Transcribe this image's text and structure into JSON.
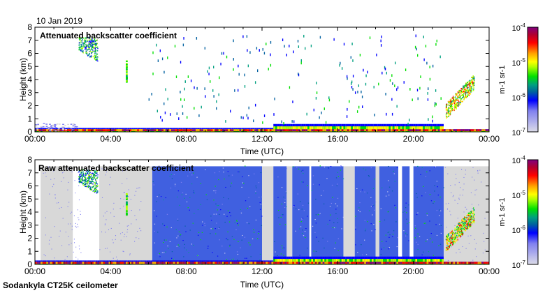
{
  "date_label": "10 Jan 2019",
  "footer_label": "Sodankyla CT25K ceilometer",
  "chart_data": [
    {
      "type": "heatmap",
      "title": "Attenuated backscatter coefficient",
      "xlabel": "Time (UTC)",
      "ylabel": "Height (km)",
      "xlim": [
        0,
        24
      ],
      "ylim": [
        0,
        8
      ],
      "x_ticks": [
        "00:00",
        "04:00",
        "08:00",
        "12:00",
        "16:00",
        "20:00",
        "00:00"
      ],
      "y_ticks": [
        "0",
        "1",
        "2",
        "3",
        "4",
        "5",
        "6",
        "7",
        "8"
      ],
      "colorbar": {
        "label": "m-1 sr-1",
        "ticks": [
          "10-7",
          "10-6",
          "10-5",
          "10-4"
        ],
        "scale": "log",
        "range": [
          1e-07,
          0.0001
        ]
      },
      "features": [
        {
          "name": "surface layer",
          "t": [
            0,
            21.6
          ],
          "h": [
            0,
            0.3
          ]
        },
        {
          "name": "thick boundary layer",
          "t": [
            12.5,
            21.6
          ],
          "h": [
            0,
            0.6
          ]
        },
        {
          "name": "high cloud",
          "t": [
            2.3,
            3.3
          ],
          "h": [
            5.3,
            7.2
          ]
        },
        {
          "name": "cloud streak",
          "t": [
            4.8,
            4.9
          ],
          "h": [
            3.7,
            5.4
          ]
        },
        {
          "name": "rising layer",
          "t": [
            21.7,
            23.2
          ],
          "h": [
            1.3,
            4.0
          ]
        },
        {
          "name": "scattered precipitation echoes",
          "t": [
            6,
            21.5
          ],
          "h": [
            0.5,
            7.3
          ]
        }
      ]
    },
    {
      "type": "heatmap",
      "title": "Raw attenuated backscatter coefficient",
      "xlabel": "Time (UTC)",
      "ylabel": "Height (km)",
      "xlim": [
        0,
        24
      ],
      "ylim": [
        0,
        8
      ],
      "x_ticks": [
        "00:00",
        "04:00",
        "08:00",
        "12:00",
        "16:00",
        "20:00",
        "00:00"
      ],
      "y_ticks": [
        "0",
        "1",
        "2",
        "3",
        "4",
        "5",
        "6",
        "7",
        "8"
      ],
      "colorbar": {
        "label": "m-1 sr-1",
        "ticks": [
          "10-7",
          "10-6",
          "10-5",
          "10-4"
        ],
        "scale": "log",
        "range": [
          1e-07,
          0.0001
        ]
      },
      "noise_blocks": [
        [
          6.2,
          12.0
        ],
        [
          12.6,
          13.3
        ],
        [
          13.6,
          14.5
        ],
        [
          14.6,
          16.3
        ],
        [
          16.9,
          18.0
        ],
        [
          18.2,
          19.2
        ],
        [
          19.4,
          19.8
        ],
        [
          20.0,
          21.6
        ]
      ],
      "grey_blocks": [
        [
          0.3,
          2.0
        ],
        [
          3.4,
          6.2
        ],
        [
          12.0,
          12.6
        ],
        [
          13.3,
          13.6
        ],
        [
          16.3,
          16.9
        ],
        [
          18.0,
          18.2
        ],
        [
          21.6,
          24
        ]
      ]
    }
  ],
  "colors": {
    "bg": "#ffffff",
    "grey": "#d8d8d8"
  }
}
